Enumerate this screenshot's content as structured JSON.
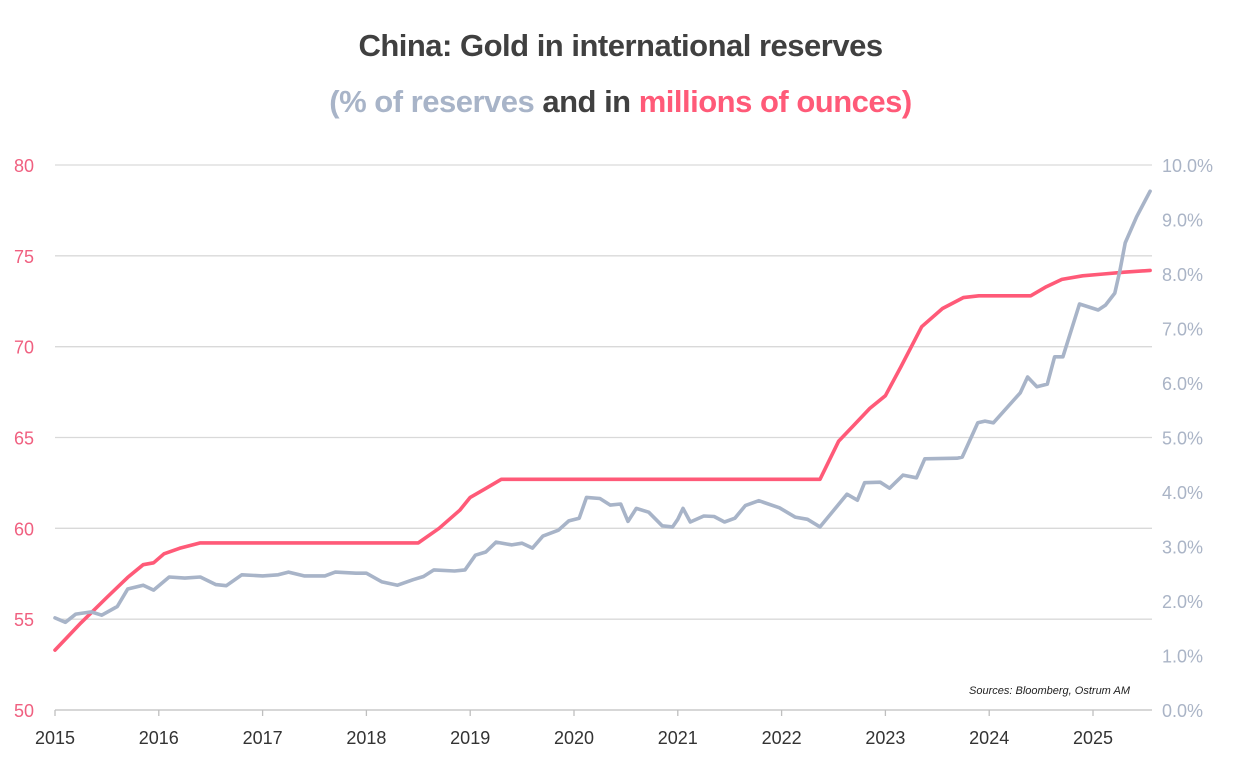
{
  "chart_data": {
    "type": "line",
    "title": "China: Gold in international reserves",
    "subtitle_parts": [
      {
        "text": "(% of reserves",
        "color": "#a8b4c8"
      },
      {
        "text": " and in ",
        "color": "#404040"
      },
      {
        "text": "millions of ounces)",
        "color": "#ff5a78"
      }
    ],
    "source": "Sources: Bloomberg, Ostrum AM",
    "x_ticks": [
      "2015",
      "2016",
      "2017",
      "2018",
      "2019",
      "2020",
      "2021",
      "2022",
      "2023",
      "2024",
      "2025"
    ],
    "xlim": [
      2015,
      2025.55
    ],
    "y_left": {
      "ylim": [
        50,
        80
      ],
      "ticks": [
        "50",
        "55",
        "60",
        "65",
        "70",
        "75",
        "80"
      ],
      "color": "#f06080"
    },
    "y_right": {
      "ylim": [
        0,
        10
      ],
      "ticks": [
        "0.0%",
        "1.0%",
        "2.0%",
        "3.0%",
        "4.0%",
        "5.0%",
        "6.0%",
        "7.0%",
        "8.0%",
        "9.0%",
        "10.0%"
      ],
      "color": "#aab4c6"
    },
    "grid": true,
    "series": [
      {
        "axis": "left",
        "color": "#ff5a78",
        "x": [
          2015.0,
          2015.25,
          2015.5,
          2015.7,
          2015.85,
          2015.95,
          2016.05,
          2016.2,
          2016.4,
          2018.5,
          2018.7,
          2018.9,
          2019.0,
          2019.15,
          2019.3,
          2022.37,
          2022.55,
          2022.7,
          2022.85,
          2023.0,
          2023.15,
          2023.35,
          2023.55,
          2023.75,
          2023.9,
          2024.4,
          2024.55,
          2024.7,
          2024.9,
          2025.1,
          2025.3,
          2025.55
        ],
        "values": [
          53.3,
          54.8,
          56.2,
          57.3,
          58.0,
          58.1,
          58.6,
          58.9,
          59.2,
          59.2,
          60.0,
          61.0,
          61.7,
          62.2,
          62.7,
          62.7,
          64.8,
          65.7,
          66.6,
          67.3,
          68.9,
          71.1,
          72.1,
          72.7,
          72.8,
          72.8,
          73.3,
          73.7,
          73.9,
          74.0,
          74.1,
          74.2
        ]
      },
      {
        "axis": "right",
        "color": "#a8b4c8",
        "x": [
          2015.0,
          2015.1,
          2015.2,
          2015.35,
          2015.45,
          2015.6,
          2015.7,
          2015.85,
          2015.95,
          2016.1,
          2016.25,
          2016.4,
          2016.55,
          2016.65,
          2016.8,
          2017.0,
          2017.15,
          2017.25,
          2017.4,
          2017.6,
          2017.7,
          2017.9,
          2018.0,
          2018.15,
          2018.3,
          2018.45,
          2018.55,
          2018.65,
          2018.85,
          2018.95,
          2019.05,
          2019.15,
          2019.25,
          2019.4,
          2019.5,
          2019.6,
          2019.7,
          2019.85,
          2019.95,
          2020.05,
          2020.12,
          2020.25,
          2020.35,
          2020.45,
          2020.52,
          2020.6,
          2020.72,
          2020.85,
          2020.95,
          2021.0,
          2021.05,
          2021.12,
          2021.25,
          2021.35,
          2021.45,
          2021.55,
          2021.65,
          2021.78,
          2021.98,
          2022.13,
          2022.25,
          2022.37,
          2022.63,
          2022.73,
          2022.8,
          2022.95,
          2023.04,
          2023.17,
          2023.3,
          2023.38,
          2023.69,
          2023.74,
          2023.89,
          2023.96,
          2024.04,
          2024.3,
          2024.37,
          2024.46,
          2024.56,
          2024.63,
          2024.71,
          2024.87,
          2025.05,
          2025.12,
          2025.21,
          2025.26,
          2025.31,
          2025.42,
          2025.55
        ],
        "values": [
          1.69,
          1.61,
          1.76,
          1.8,
          1.74,
          1.9,
          2.22,
          2.29,
          2.2,
          2.44,
          2.42,
          2.44,
          2.3,
          2.28,
          2.48,
          2.46,
          2.48,
          2.53,
          2.46,
          2.46,
          2.53,
          2.51,
          2.51,
          2.35,
          2.29,
          2.39,
          2.45,
          2.57,
          2.55,
          2.57,
          2.84,
          2.9,
          3.08,
          3.03,
          3.06,
          2.97,
          3.19,
          3.3,
          3.47,
          3.52,
          3.9,
          3.88,
          3.76,
          3.78,
          3.46,
          3.7,
          3.63,
          3.38,
          3.36,
          3.5,
          3.7,
          3.45,
          3.56,
          3.55,
          3.45,
          3.52,
          3.75,
          3.84,
          3.71,
          3.54,
          3.5,
          3.36,
          3.96,
          3.85,
          4.17,
          4.18,
          4.07,
          4.31,
          4.26,
          4.61,
          4.62,
          4.64,
          5.27,
          5.3,
          5.27,
          5.82,
          6.11,
          5.93,
          5.98,
          6.48,
          6.48,
          7.45,
          7.34,
          7.43,
          7.65,
          8.07,
          8.57,
          9.05,
          9.52
        ]
      }
    ]
  }
}
